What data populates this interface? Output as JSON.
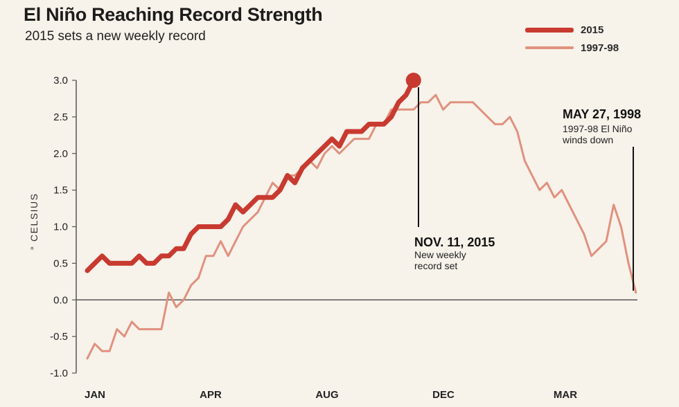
{
  "chart_data": {
    "type": "line",
    "title": "El Niño Reaching Record Strength",
    "subtitle": "2015 sets a new weekly record",
    "ylabel": "° CELSIUS",
    "ylim": [
      -1.0,
      3.0
    ],
    "yticks": [
      "3.0",
      "2.5",
      "2.0",
      "1.5",
      "1.0",
      "0.5",
      "0.0",
      "-0.5",
      "-1.0"
    ],
    "months": [
      "JAN",
      "APR",
      "AUG",
      "DEC",
      "MAR"
    ],
    "grid": false,
    "legend_position": "top-right",
    "series": [
      {
        "name": "2015",
        "color": "#c83a30",
        "values": [
          0.4,
          0.5,
          0.6,
          0.5,
          0.5,
          0.5,
          0.5,
          0.6,
          0.5,
          0.5,
          0.6,
          0.6,
          0.7,
          0.7,
          0.9,
          1.0,
          1.0,
          1.0,
          1.0,
          1.1,
          1.3,
          1.2,
          1.3,
          1.4,
          1.4,
          1.4,
          1.5,
          1.7,
          1.6,
          1.8,
          1.9,
          2.0,
          2.1,
          2.2,
          2.1,
          2.3,
          2.3,
          2.3,
          2.4,
          2.4,
          2.4,
          2.5,
          2.7,
          2.8,
          3.0
        ]
      },
      {
        "name": "1997-98",
        "color": "#e0917e",
        "values": [
          -0.8,
          -0.6,
          -0.7,
          -0.7,
          -0.4,
          -0.5,
          -0.3,
          -0.4,
          -0.4,
          -0.4,
          -0.4,
          0.1,
          -0.1,
          0.0,
          0.2,
          0.3,
          0.6,
          0.6,
          0.8,
          0.6,
          0.8,
          1.0,
          1.1,
          1.2,
          1.4,
          1.6,
          1.5,
          1.7,
          1.7,
          1.8,
          1.9,
          1.8,
          2.0,
          2.1,
          2.0,
          2.1,
          2.2,
          2.2,
          2.2,
          2.4,
          2.4,
          2.6,
          2.6,
          2.6,
          2.6,
          2.7,
          2.7,
          2.8,
          2.6,
          2.7,
          2.7,
          2.7,
          2.7,
          2.6,
          2.5,
          2.4,
          2.4,
          2.5,
          2.3,
          1.9,
          1.7,
          1.5,
          1.6,
          1.4,
          1.5,
          1.3,
          1.1,
          0.9,
          0.6,
          0.7,
          0.8,
          1.3,
          1.0,
          0.5,
          0.1
        ]
      }
    ],
    "annotations": [
      {
        "title": "NOV. 11, 2015",
        "lines": [
          "New weekly",
          "record set"
        ],
        "date": "2015-11-11",
        "value": 3.0
      },
      {
        "title": "MAY 27, 1998",
        "lines": [
          "1997-98 El Niño",
          "winds down"
        ],
        "date": "1998-05-27",
        "value": 0.1
      }
    ]
  }
}
